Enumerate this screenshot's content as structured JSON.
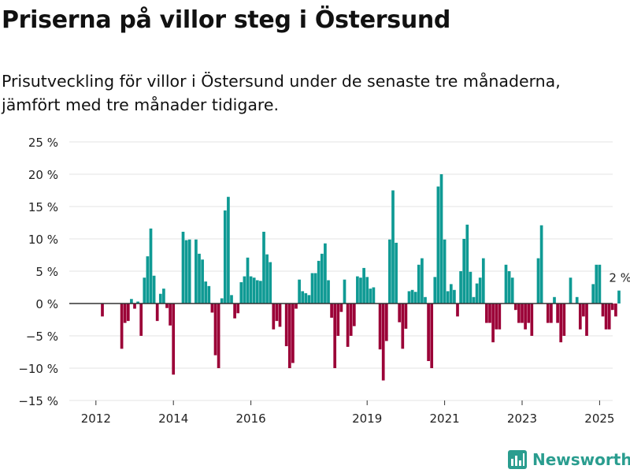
{
  "title": "Priserna på villor steg i Östersund",
  "subtitle": "Prisutveckling för villor i Östersund under de senaste tre månaderna, jämfört med tre månader tidigare.",
  "brand": "Newsworthy",
  "colors": {
    "positive": "#0f9a94",
    "negative": "#9b0037",
    "grid": "#e3e3e3",
    "zero": "#333333",
    "brand": "#2a9d8f"
  },
  "chart_data": {
    "type": "bar",
    "start": "2012-01",
    "value_unit": "%",
    "ylim": [
      -15,
      25
    ],
    "yticks": [
      25,
      20,
      15,
      10,
      5,
      0,
      -5,
      -10,
      -15
    ],
    "ytick_labels": [
      "25 %",
      "20 %",
      "15 %",
      "10 %",
      "5 %",
      "0 %",
      "−5 %",
      "−10 %",
      "−15 %"
    ],
    "xticks": [
      2012,
      2014,
      2016,
      2019,
      2021,
      2023,
      2025
    ],
    "last_value_label": "2 %",
    "values": [
      null,
      null,
      -2,
      null,
      null,
      null,
      null,
      null,
      -7,
      -3,
      -2.7,
      0.7,
      -0.8,
      0.3,
      -5,
      4,
      7.3,
      11.6,
      4.3,
      -2.7,
      1.5,
      2.3,
      -0.7,
      -3.4,
      -11,
      null,
      null,
      11.1,
      9.8,
      9.9,
      null,
      9.9,
      7.7,
      6.8,
      3.4,
      2.7,
      -1.4,
      -8,
      -10,
      0.8,
      14.4,
      16.5,
      1.3,
      -2.3,
      -1.5,
      3.3,
      4.2,
      7.1,
      4.2,
      4,
      3.6,
      3.5,
      11.1,
      7.6,
      6.4,
      -4,
      -2.7,
      -3.6,
      null,
      -6.6,
      -10,
      -9.2,
      -0.8,
      3.7,
      1.9,
      1.6,
      1.3,
      4.7,
      4.7,
      6.6,
      7.7,
      9.3,
      3.6,
      -2.2,
      -10,
      -5,
      -1.3,
      3.7,
      -6.7,
      -5,
      -3.5,
      4.2,
      4,
      5.5,
      4.1,
      2.3,
      2.5,
      null,
      -7.1,
      -11.9,
      -5.8,
      9.9,
      17.5,
      9.4,
      -2.9,
      -7,
      -3.9,
      1.9,
      2.1,
      1.8,
      6,
      7,
      1,
      -8.9,
      -10,
      4.1,
      18.1,
      20,
      9.9,
      1.9,
      3,
      2.1,
      -2,
      5,
      10,
      12.2,
      4.9,
      1,
      3.1,
      4,
      7,
      -3,
      -3,
      -6,
      -4,
      -4,
      null,
      6,
      5,
      4,
      -1,
      -3,
      -3,
      -4,
      -3,
      -5,
      null,
      7,
      12.1,
      null,
      -3,
      -3,
      1,
      -3,
      -6,
      -5,
      null,
      4,
      null,
      1,
      -4,
      -2,
      -5,
      null,
      3,
      6,
      6,
      -2,
      -4,
      -4,
      -1,
      -2,
      2
    ]
  }
}
